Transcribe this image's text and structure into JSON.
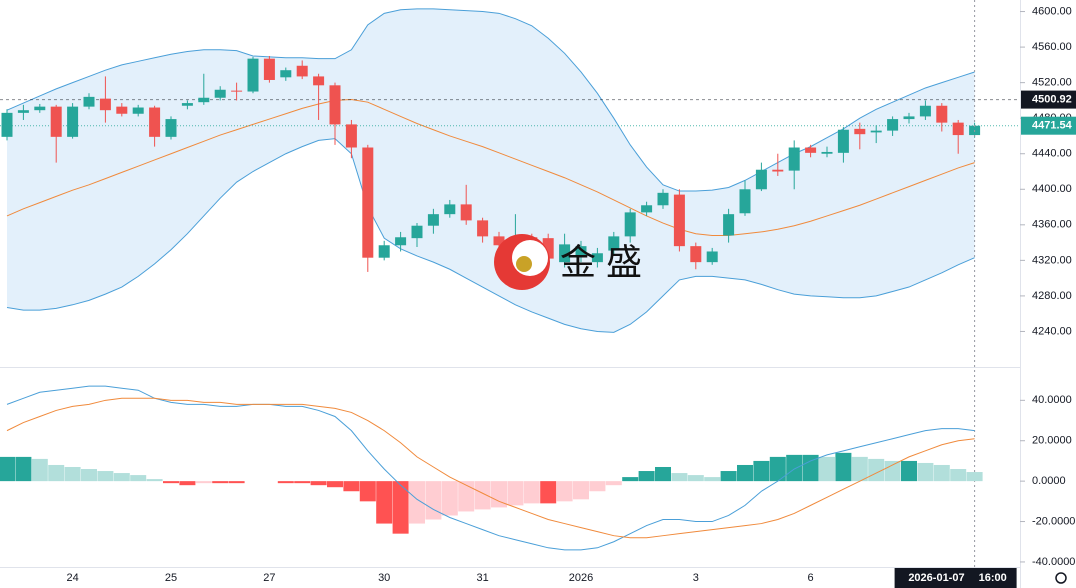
{
  "chart_data": [
    {
      "type": "candlestick",
      "categories": [
        null,
        null,
        null,
        null,
        "24",
        null,
        null,
        null,
        null,
        null,
        "25",
        null,
        null,
        null,
        null,
        null,
        "27",
        null,
        null,
        null,
        null,
        null,
        null,
        "30",
        null,
        null,
        null,
        null,
        null,
        "31",
        null,
        null,
        null,
        null,
        null,
        "2026",
        null,
        null,
        null,
        null,
        null,
        null,
        "3",
        null,
        null,
        null,
        null,
        null,
        null,
        "6",
        null,
        null,
        null,
        null,
        null,
        null,
        null,
        null,
        null,
        null
      ],
      "open": [
        4459,
        4486,
        4489,
        4493,
        4459,
        4493,
        4502,
        4493,
        4485,
        4492,
        4459,
        4494,
        4498,
        4503,
        4511,
        4510,
        4547,
        4526,
        4539,
        4527,
        4517,
        4473,
        4447,
        4323,
        4337,
        4345,
        4359,
        4372,
        4383,
        4365,
        4347,
        4331,
        4346,
        4345,
        4318,
        4325,
        4318,
        4331,
        4347,
        4374,
        4382,
        4394,
        4336,
        4318,
        4348,
        4373,
        4400,
        4422,
        4421,
        4447,
        4440,
        4441,
        4468,
        4464,
        4466,
        4479,
        4482,
        4494,
        4475,
        4461
      ],
      "high": [
        4490,
        4495,
        4496,
        4495,
        4497,
        4508,
        4527,
        4497,
        4495,
        4494,
        4482,
        4500,
        4530,
        4516,
        4520,
        4549,
        4550,
        4537,
        4545,
        4530,
        4520,
        4478,
        4450,
        4342,
        4352,
        4362,
        4378,
        4388,
        4405,
        4368,
        4352,
        4372,
        4350,
        4350,
        4350,
        4342,
        4334,
        4352,
        4378,
        4386,
        4400,
        4400,
        4340,
        4334,
        4378,
        4410,
        4430,
        4440,
        4455,
        4450,
        4448,
        4470,
        4475,
        4472,
        4482,
        4486,
        4500,
        4497,
        4478,
        4475
      ],
      "low": [
        4455,
        4478,
        4486,
        4430,
        4457,
        4490,
        4475,
        4482,
        4482,
        4448,
        4456,
        4490,
        4495,
        4500,
        4500,
        4508,
        4520,
        4522,
        4524,
        4478,
        4450,
        4435,
        4307,
        4320,
        4330,
        4335,
        4350,
        4368,
        4360,
        4340,
        4330,
        4325,
        4290,
        4315,
        4312,
        4318,
        4312,
        4325,
        4340,
        4370,
        4378,
        4330,
        4310,
        4315,
        4340,
        4370,
        4398,
        4415,
        4400,
        4436,
        4436,
        4430,
        4445,
        4452,
        4460,
        4474,
        4478,
        4465,
        4440,
        4458
      ],
      "close": [
        4486,
        4489,
        4493,
        4459,
        4493,
        4504,
        4489,
        4485,
        4492,
        4459,
        4479,
        4497,
        4503,
        4512,
        4510,
        4547,
        4523,
        4534,
        4527,
        4517,
        4473,
        4447,
        4323,
        4337,
        4346,
        4359,
        4372,
        4383,
        4365,
        4347,
        4337,
        4345,
        4303,
        4322,
        4338,
        4336,
        4328,
        4347,
        4374,
        4382,
        4396,
        4336,
        4318,
        4330,
        4372,
        4400,
        4422,
        4420,
        4447,
        4441,
        4442,
        4467,
        4462,
        4466,
        4479,
        4482,
        4494,
        4475,
        4461,
        4471.54
      ],
      "up_color": "#26a69a",
      "down_color": "#ef5350",
      "series": [
        {
          "color": "#4a9fd8",
          "values": [
            4489,
            4497,
            4505,
            4513,
            4520,
            4527,
            4534,
            4540,
            4544,
            4548,
            4552,
            4555,
            4557,
            4557,
            4556,
            4550,
            4549,
            4548,
            4548,
            4547,
            4547,
            4557,
            4585,
            4598,
            4602,
            4603,
            4603,
            4602,
            4601,
            4600,
            4598,
            4592,
            4584,
            4570,
            4553,
            4532,
            4508,
            4480,
            4450,
            4425,
            4405,
            4398,
            4398,
            4399,
            4402,
            4410,
            4420,
            4430,
            4440,
            4448,
            4458,
            4468,
            4480,
            4490,
            4498,
            4506,
            4514,
            4520,
            4526,
            4532
          ]
        },
        {
          "color": "#f08a3c",
          "values": [
            4370,
            4378,
            4385,
            4392,
            4399,
            4405,
            4412,
            4419,
            4426,
            4433,
            4440,
            4447,
            4454,
            4461,
            4467,
            4473,
            4479,
            4485,
            4491,
            4496,
            4500,
            4501,
            4498,
            4490,
            4482,
            4474,
            4467,
            4460,
            4454,
            4448,
            4441,
            4434,
            4427,
            4420,
            4413,
            4405,
            4397,
            4388,
            4379,
            4370,
            4362,
            4355,
            4350,
            4348,
            4348,
            4350,
            4352,
            4355,
            4359,
            4364,
            4370,
            4376,
            4382,
            4389,
            4396,
            4403,
            4410,
            4417,
            4424,
            4430
          ]
        },
        {
          "color": "#4a9fd8",
          "values": [
            4267,
            4264,
            4264,
            4266,
            4270,
            4275,
            4282,
            4290,
            4302,
            4316,
            4332,
            4350,
            4370,
            4390,
            4408,
            4420,
            4430,
            4440,
            4448,
            4455,
            4457,
            4440,
            4380,
            4345,
            4333,
            4325,
            4318,
            4310,
            4300,
            4290,
            4280,
            4270,
            4262,
            4255,
            4248,
            4243,
            4240,
            4239,
            4248,
            4262,
            4280,
            4298,
            4302,
            4302,
            4300,
            4298,
            4293,
            4287,
            4282,
            4280,
            4279,
            4278,
            4278,
            4280,
            4285,
            4290,
            4298,
            4306,
            4315,
            4323
          ]
        }
      ],
      "band_fill": "#e3f0fb",
      "ylim": [
        4200,
        4613
      ],
      "yticks": [
        {
          "value": 4240,
          "label": "4240.00"
        },
        {
          "value": 4280,
          "label": "4280.00"
        },
        {
          "value": 4320,
          "label": "4320.00"
        },
        {
          "value": 4360,
          "label": "4360.00"
        },
        {
          "value": 4400,
          "label": "4400.00"
        },
        {
          "value": 4440,
          "label": "4440.00"
        },
        {
          "value": 4480,
          "label": "4480.00"
        },
        {
          "value": 4520,
          "label": "4520.00"
        },
        {
          "value": 4560,
          "label": "4560.00"
        },
        {
          "value": 4600,
          "label": "4600.00"
        }
      ],
      "price_labels": [
        {
          "value": 4500.92,
          "color": "#131722"
        },
        {
          "value": 4471.54,
          "color": "#26a69a"
        }
      ],
      "crosshair": {
        "date": "2026-01-07",
        "time": "16:00"
      },
      "watermark": {
        "text": "金 盛"
      }
    },
    {
      "type": "macd",
      "series": [
        {
          "color": "#4a9fd8",
          "values": [
            38,
            41,
            44,
            45,
            46,
            47,
            47,
            46,
            45,
            41,
            39,
            38,
            38,
            37,
            37,
            38,
            38,
            37,
            37,
            35,
            32,
            25,
            15,
            6,
            -2,
            -9,
            -14,
            -18,
            -21,
            -24,
            -27,
            -29,
            -31,
            -33,
            -34,
            -34,
            -33,
            -30,
            -26,
            -22,
            -19,
            -19,
            -20,
            -20,
            -17,
            -12,
            -5,
            0,
            6,
            10,
            13,
            15,
            17,
            19,
            21,
            23,
            25,
            26,
            26,
            25
          ]
        },
        {
          "color": "#f08a3c",
          "values": [
            25,
            29,
            32,
            35,
            37,
            38,
            40,
            41,
            41,
            41,
            40,
            40,
            39,
            39,
            38,
            38,
            38,
            38,
            38,
            37,
            36,
            34,
            30,
            25,
            19,
            12,
            7,
            2,
            -2,
            -6,
            -10,
            -13,
            -16,
            -19,
            -21,
            -23,
            -25,
            -27,
            -28,
            -28,
            -27,
            -26,
            -25,
            -24,
            -23,
            -22,
            -21,
            -19,
            -16,
            -12,
            -8,
            -4,
            0,
            4,
            8,
            12,
            15,
            18,
            20,
            21
          ]
        }
      ],
      "histogram": [
        12,
        12,
        11,
        8,
        7,
        6,
        5,
        4,
        3,
        1,
        -1,
        -2,
        -1,
        -1,
        -1,
        0,
        0,
        -1,
        -1,
        -2,
        -3,
        -5,
        -10,
        -21,
        -26,
        -21,
        -19,
        -17,
        -15,
        -14,
        -13,
        -12,
        -11,
        -11,
        -10,
        -9,
        -5,
        -2,
        2,
        5,
        7,
        4,
        3,
        2,
        5,
        8,
        10,
        12,
        13,
        13,
        12,
        14,
        12,
        11,
        10,
        10,
        9,
        8,
        6,
        4.5
      ],
      "histogram_colors": {
        "up_rising": "#26a69a",
        "up_falling": "#b2dfdb",
        "down_falling": "#ff5252",
        "down_rising": "#ffcdd2"
      },
      "ylim": [
        -42.5,
        56
      ],
      "yticks": [
        {
          "value": 40,
          "label": "40.0000"
        },
        {
          "value": 20,
          "label": "20.0000"
        },
        {
          "value": 0,
          "label": "0.0000"
        },
        {
          "value": -20,
          "label": "-20.0000"
        },
        {
          "value": -40,
          "label": "-40.0000"
        }
      ]
    }
  ]
}
